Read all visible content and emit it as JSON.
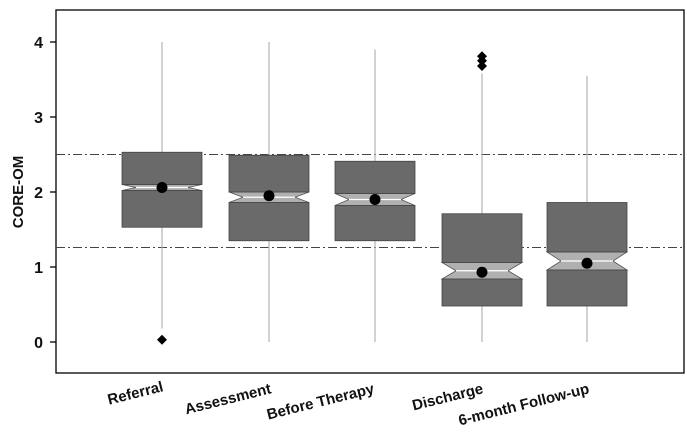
{
  "chart_data": {
    "type": "boxplot",
    "ylabel": "CORE-OM",
    "xlabel": "",
    "title": "",
    "ylim": [
      -0.3,
      4.4
    ],
    "yticks": [
      0,
      1,
      2,
      3,
      4
    ],
    "grid": false,
    "reference_lines": [
      2.5,
      1.26
    ],
    "categories": [
      "Referral",
      "Assessment",
      "Before Therapy",
      "Discharge",
      "6-month Follow-up"
    ],
    "boxes": [
      {
        "whisker_low": 0.18,
        "q1": 1.53,
        "median": 2.06,
        "q3": 2.53,
        "whisker_high": 4.0,
        "notch_low": 2.02,
        "notch_high": 2.1,
        "mean": 2.06,
        "outliers": [
          0.03
        ]
      },
      {
        "whisker_low": 0.0,
        "q1": 1.35,
        "median": 1.93,
        "q3": 2.49,
        "whisker_high": 4.0,
        "notch_low": 1.86,
        "notch_high": 2.0,
        "mean": 1.95,
        "outliers": []
      },
      {
        "whisker_low": 0.0,
        "q1": 1.35,
        "median": 1.9,
        "q3": 2.41,
        "whisker_high": 3.9,
        "notch_low": 1.82,
        "notch_high": 1.98,
        "mean": 1.9,
        "outliers": []
      },
      {
        "whisker_low": 0.0,
        "q1": 0.48,
        "median": 0.95,
        "q3": 1.71,
        "whisker_high": 3.58,
        "notch_low": 0.84,
        "notch_high": 1.06,
        "mean": 0.93,
        "outliers": [
          3.68,
          3.75,
          3.81
        ]
      },
      {
        "whisker_low": 0.0,
        "q1": 0.48,
        "median": 1.08,
        "q3": 1.86,
        "whisker_high": 3.55,
        "notch_low": 0.96,
        "notch_high": 1.2,
        "mean": 1.05,
        "outliers": []
      }
    ],
    "colors": {
      "box_fill": "#6a6a6a",
      "notch_fill": "#b0b0b0",
      "whisker": "#b5b5b5",
      "mean_marker": "#000000",
      "outlier": "#000000",
      "reference_line": "#444444",
      "frame": "#000000"
    }
  }
}
